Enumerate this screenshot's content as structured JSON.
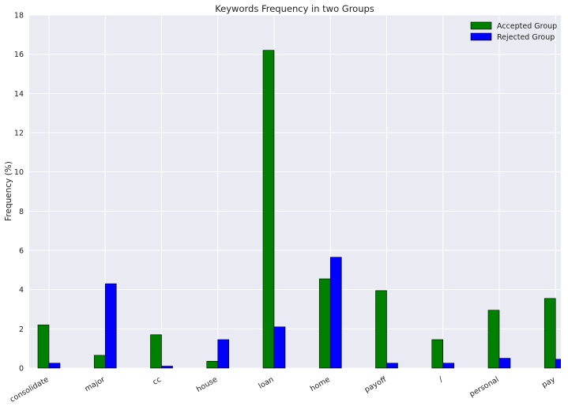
{
  "chart_data": {
    "type": "bar",
    "title": "Keywords Frequency in two Groups",
    "xlabel": "",
    "ylabel": "Frequency (%)",
    "ylim": [
      0,
      18
    ],
    "yticks": [
      "0",
      "2",
      "4",
      "6",
      "8",
      "10",
      "12",
      "14",
      "16",
      "18"
    ],
    "grid": true,
    "legend_position": "top-right",
    "categories": [
      "consolidate",
      "major",
      "cc",
      "house",
      "loan",
      "home",
      "payoff",
      "/",
      "personal",
      "pay"
    ],
    "series": [
      {
        "name": "Accepted Group",
        "color": "#008000",
        "values": [
          2.2,
          0.65,
          1.7,
          0.35,
          16.2,
          4.55,
          3.95,
          1.45,
          2.95,
          3.55
        ]
      },
      {
        "name": "Rejected Group",
        "color": "#0000ff",
        "values": [
          0.25,
          4.3,
          0.1,
          1.45,
          2.1,
          5.65,
          0.25,
          0.25,
          0.5,
          0.45
        ]
      }
    ],
    "plot_background": "#eaeaf2",
    "grid_color": "#ffffff"
  }
}
